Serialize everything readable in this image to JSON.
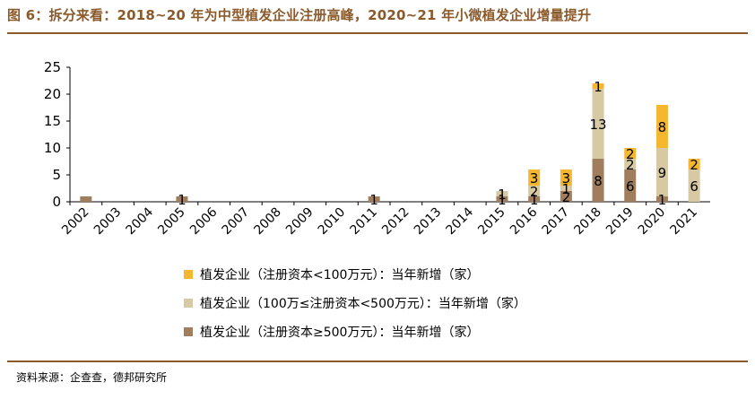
{
  "title": "图 6：拆分来看：2018~20 年为中型植发企业注册高峰，2020~21 年小微植发企业增量提升",
  "source": "资料来源：企查查，德邦研究所",
  "colors": {
    "accent": "#8B5A2B",
    "small": "#F5B730",
    "medium": "#D6C9A3",
    "large": "#A07D5C"
  },
  "chart_data": {
    "type": "bar",
    "stacked": true,
    "categories": [
      "2002",
      "2003",
      "2004",
      "2005",
      "2006",
      "2007",
      "2008",
      "2009",
      "2010",
      "2011",
      "2012",
      "2013",
      "2014",
      "2015",
      "2016",
      "2017",
      "2018",
      "2019",
      "2020",
      "2021"
    ],
    "series": [
      {
        "name": "植发企业（注册资本≥500万元）：当年新增（家）",
        "color": "#A07D5C",
        "values": [
          1,
          0,
          0,
          1,
          0,
          0,
          0,
          0,
          0,
          1,
          0,
          0,
          0,
          1,
          1,
          2,
          8,
          6,
          1,
          0
        ]
      },
      {
        "name": "植发企业（100万≤注册资本<500万元）：当年新增（家）",
        "color": "#D6C9A3",
        "values": [
          0,
          0,
          0,
          0,
          0,
          0,
          0,
          0,
          0,
          0,
          0,
          0,
          0,
          1,
          2,
          1,
          13,
          2,
          9,
          6
        ]
      },
      {
        "name": "植发企业（注册资本<100万元）：当年新增（家）",
        "color": "#F5B730",
        "values": [
          0,
          0,
          0,
          0,
          0,
          0,
          0,
          0,
          0,
          0,
          0,
          0,
          0,
          0,
          3,
          3,
          1,
          2,
          8,
          2
        ]
      }
    ],
    "data_labels": [
      {
        "category": "2005",
        "series": 0,
        "text": "1"
      },
      {
        "category": "2011",
        "series": 0,
        "text": "1"
      },
      {
        "category": "2015",
        "series": 0,
        "text": "1"
      },
      {
        "category": "2015",
        "series": 1,
        "text": "1"
      },
      {
        "category": "2016",
        "series": 0,
        "text": "1"
      },
      {
        "category": "2016",
        "series": 1,
        "text": "2"
      },
      {
        "category": "2016",
        "series": 2,
        "text": "3"
      },
      {
        "category": "2017",
        "series": 0,
        "text": "2"
      },
      {
        "category": "2017",
        "series": 1,
        "text": "1"
      },
      {
        "category": "2017",
        "series": 2,
        "text": "3"
      },
      {
        "category": "2018",
        "series": 0,
        "text": "8"
      },
      {
        "category": "2018",
        "series": 1,
        "text": "13"
      },
      {
        "category": "2018",
        "series": 2,
        "text": "1"
      },
      {
        "category": "2019",
        "series": 0,
        "text": "6"
      },
      {
        "category": "2019",
        "series": 1,
        "text": "2"
      },
      {
        "category": "2019",
        "series": 2,
        "text": "2"
      },
      {
        "category": "2020",
        "series": 0,
        "text": "1"
      },
      {
        "category": "2020",
        "series": 1,
        "text": "9"
      },
      {
        "category": "2020",
        "series": 2,
        "text": "8"
      },
      {
        "category": "2021",
        "series": 1,
        "text": "6"
      },
      {
        "category": "2021",
        "series": 2,
        "text": "2"
      }
    ],
    "ylim": [
      0,
      25
    ],
    "yticks": [
      0,
      5,
      10,
      15,
      20,
      25
    ],
    "legend_position": "bottom",
    "grid": false
  },
  "legend": [
    {
      "label": "植发企业（注册资本<100万元）：当年新增（家）",
      "color": "#F5B730"
    },
    {
      "label": "植发企业（100万≤注册资本<500万元）：当年新增（家）",
      "color": "#D6C9A3"
    },
    {
      "label": "植发企业（注册资本≥500万元）：当年新增（家）",
      "color": "#A07D5C"
    }
  ]
}
